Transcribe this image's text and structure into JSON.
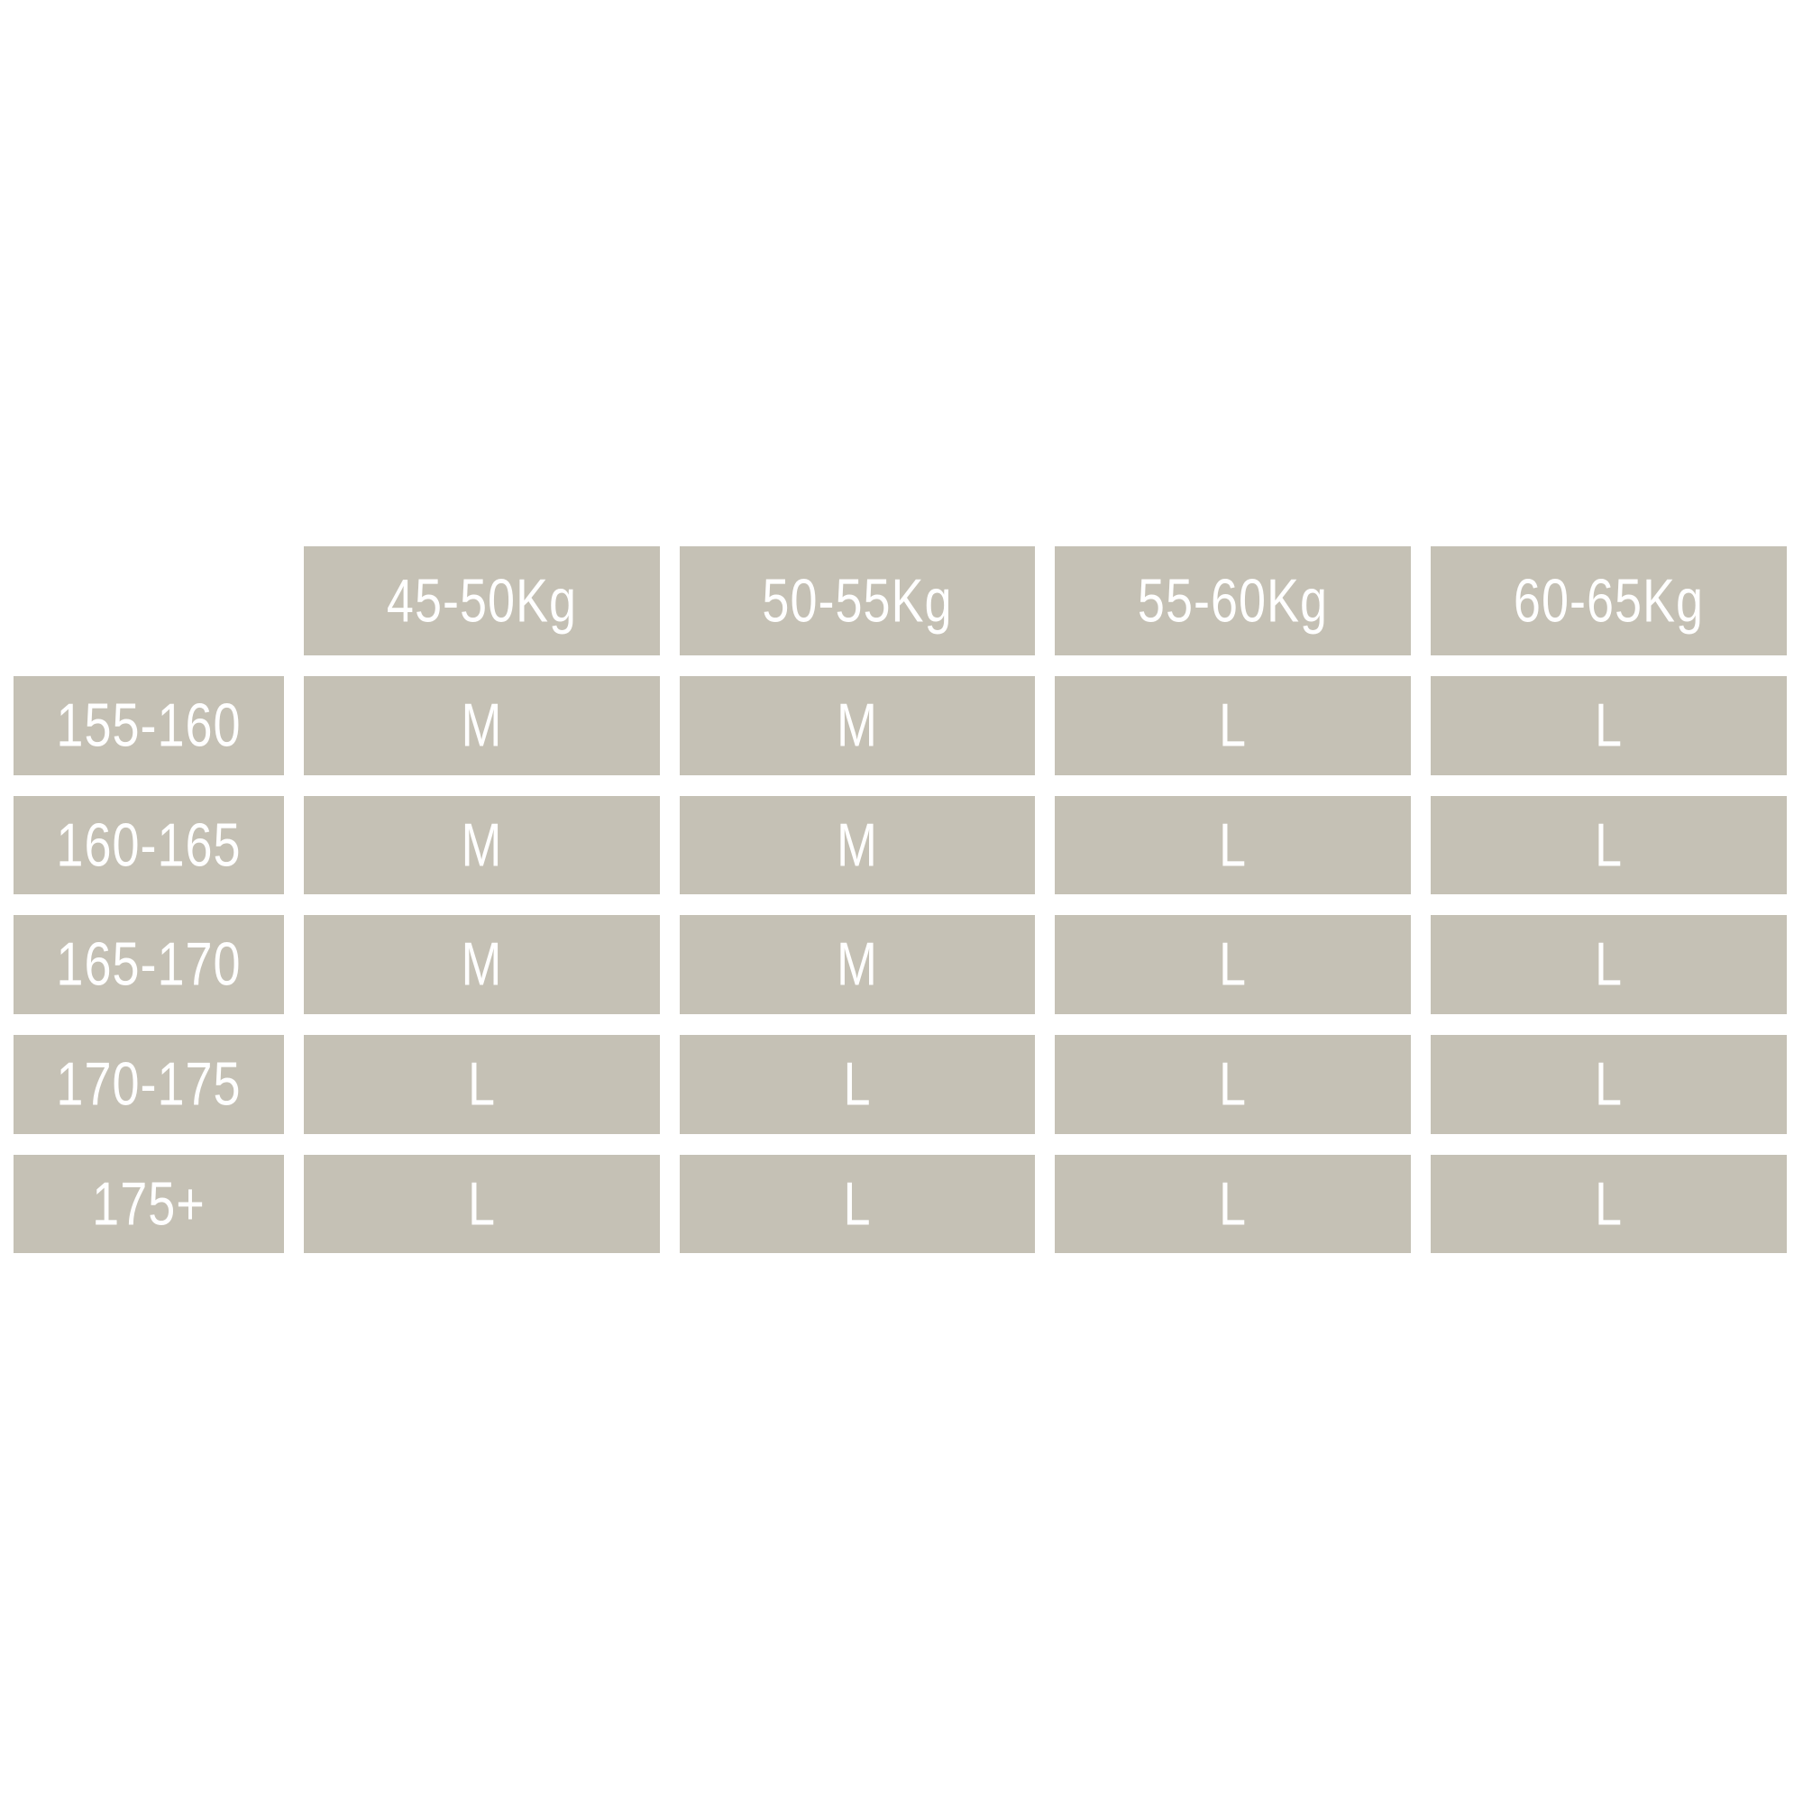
{
  "size_chart": {
    "columns": [
      "45-50Kg",
      "50-55Kg",
      "55-60Kg",
      "60-65Kg"
    ],
    "rows": [
      {
        "height": "155-160",
        "sizes": [
          "M",
          "M",
          "L",
          "L"
        ]
      },
      {
        "height": "160-165",
        "sizes": [
          "M",
          "M",
          "L",
          "L"
        ]
      },
      {
        "height": "165-170",
        "sizes": [
          "M",
          "M",
          "L",
          "L"
        ]
      },
      {
        "height": "170-175",
        "sizes": [
          "L",
          "L",
          "L",
          "L"
        ]
      },
      {
        "height": "175+",
        "sizes": [
          "L",
          "L",
          "L",
          "L"
        ]
      }
    ]
  },
  "colors": {
    "cell_background": "#c5c1b5",
    "text": "#ffffff"
  }
}
